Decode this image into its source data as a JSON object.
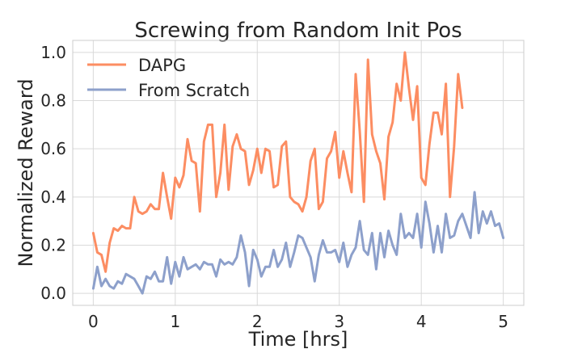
{
  "chart_data": {
    "type": "line",
    "title": "Screwing from Random Init Pos",
    "xlabel": "Time [hrs]",
    "ylabel": "Normalized Reward",
    "xlim": [
      -0.25,
      5.25
    ],
    "ylim": [
      -0.05,
      1.05
    ],
    "xticks": [
      0,
      1,
      2,
      3,
      4,
      5
    ],
    "yticks": [
      0.0,
      0.2,
      0.4,
      0.6,
      0.8,
      1.0
    ],
    "xtick_labels": [
      "0",
      "1",
      "2",
      "3",
      "4",
      "5"
    ],
    "ytick_labels": [
      "0.0",
      "0.2",
      "0.4",
      "0.6",
      "0.8",
      "1.0"
    ],
    "grid": true,
    "legend_position": "top-left",
    "series": [
      {
        "name": "DAPG",
        "color": "#fc8d62",
        "points": [
          [
            0.0,
            0.25
          ],
          [
            0.05,
            0.17
          ],
          [
            0.1,
            0.16
          ],
          [
            0.15,
            0.09
          ],
          [
            0.2,
            0.21
          ],
          [
            0.25,
            0.27
          ],
          [
            0.3,
            0.26
          ],
          [
            0.35,
            0.28
          ],
          [
            0.4,
            0.27
          ],
          [
            0.45,
            0.27
          ],
          [
            0.5,
            0.4
          ],
          [
            0.55,
            0.34
          ],
          [
            0.6,
            0.33
          ],
          [
            0.65,
            0.34
          ],
          [
            0.7,
            0.37
          ],
          [
            0.75,
            0.35
          ],
          [
            0.8,
            0.35
          ],
          [
            0.85,
            0.5
          ],
          [
            0.9,
            0.4
          ],
          [
            0.95,
            0.31
          ],
          [
            1.0,
            0.48
          ],
          [
            1.05,
            0.44
          ],
          [
            1.1,
            0.49
          ],
          [
            1.15,
            0.64
          ],
          [
            1.2,
            0.55
          ],
          [
            1.25,
            0.54
          ],
          [
            1.3,
            0.34
          ],
          [
            1.35,
            0.63
          ],
          [
            1.4,
            0.7
          ],
          [
            1.45,
            0.7
          ],
          [
            1.5,
            0.4
          ],
          [
            1.55,
            0.5
          ],
          [
            1.6,
            0.7
          ],
          [
            1.65,
            0.43
          ],
          [
            1.7,
            0.61
          ],
          [
            1.75,
            0.66
          ],
          [
            1.8,
            0.6
          ],
          [
            1.85,
            0.59
          ],
          [
            1.9,
            0.45
          ],
          [
            1.95,
            0.51
          ],
          [
            2.0,
            0.6
          ],
          [
            2.05,
            0.5
          ],
          [
            2.1,
            0.6
          ],
          [
            2.15,
            0.59
          ],
          [
            2.2,
            0.44
          ],
          [
            2.25,
            0.45
          ],
          [
            2.3,
            0.61
          ],
          [
            2.35,
            0.63
          ],
          [
            2.4,
            0.4
          ],
          [
            2.45,
            0.38
          ],
          [
            2.5,
            0.37
          ],
          [
            2.55,
            0.34
          ],
          [
            2.6,
            0.4
          ],
          [
            2.65,
            0.55
          ],
          [
            2.7,
            0.6
          ],
          [
            2.75,
            0.35
          ],
          [
            2.8,
            0.38
          ],
          [
            2.85,
            0.56
          ],
          [
            2.9,
            0.59
          ],
          [
            2.95,
            0.67
          ],
          [
            3.0,
            0.48
          ],
          [
            3.05,
            0.59
          ],
          [
            3.1,
            0.5
          ],
          [
            3.15,
            0.42
          ],
          [
            3.2,
            0.91
          ],
          [
            3.25,
            0.67
          ],
          [
            3.3,
            0.38
          ],
          [
            3.35,
            0.97
          ],
          [
            3.4,
            0.66
          ],
          [
            3.45,
            0.59
          ],
          [
            3.5,
            0.54
          ],
          [
            3.55,
            0.39
          ],
          [
            3.6,
            0.65
          ],
          [
            3.65,
            0.71
          ],
          [
            3.7,
            0.87
          ],
          [
            3.75,
            0.8
          ],
          [
            3.8,
            1.0
          ],
          [
            3.85,
            0.85
          ],
          [
            3.9,
            0.72
          ],
          [
            3.95,
            0.86
          ],
          [
            4.0,
            0.48
          ],
          [
            4.05,
            0.45
          ],
          [
            4.1,
            0.62
          ],
          [
            4.15,
            0.75
          ],
          [
            4.2,
            0.75
          ],
          [
            4.25,
            0.66
          ],
          [
            4.3,
            0.87
          ],
          [
            4.35,
            0.4
          ],
          [
            4.4,
            0.61
          ],
          [
            4.45,
            0.91
          ],
          [
            4.5,
            0.77
          ]
        ]
      },
      {
        "name": "From Scratch",
        "color": "#8da0cb",
        "points": [
          [
            0.0,
            0.02
          ],
          [
            0.05,
            0.11
          ],
          [
            0.1,
            0.03
          ],
          [
            0.15,
            0.06
          ],
          [
            0.2,
            0.03
          ],
          [
            0.25,
            0.02
          ],
          [
            0.3,
            0.05
          ],
          [
            0.35,
            0.04
          ],
          [
            0.4,
            0.08
          ],
          [
            0.45,
            0.07
          ],
          [
            0.5,
            0.06
          ],
          [
            0.55,
            0.03
          ],
          [
            0.6,
            0.0
          ],
          [
            0.65,
            0.07
          ],
          [
            0.7,
            0.06
          ],
          [
            0.75,
            0.09
          ],
          [
            0.8,
            0.05
          ],
          [
            0.85,
            0.05
          ],
          [
            0.9,
            0.15
          ],
          [
            0.95,
            0.04
          ],
          [
            1.0,
            0.13
          ],
          [
            1.05,
            0.07
          ],
          [
            1.1,
            0.15
          ],
          [
            1.15,
            0.1
          ],
          [
            1.2,
            0.11
          ],
          [
            1.25,
            0.12
          ],
          [
            1.3,
            0.1
          ],
          [
            1.35,
            0.13
          ],
          [
            1.4,
            0.12
          ],
          [
            1.45,
            0.12
          ],
          [
            1.5,
            0.07
          ],
          [
            1.55,
            0.14
          ],
          [
            1.6,
            0.12
          ],
          [
            1.65,
            0.13
          ],
          [
            1.7,
            0.12
          ],
          [
            1.75,
            0.15
          ],
          [
            1.8,
            0.24
          ],
          [
            1.85,
            0.17
          ],
          [
            1.9,
            0.03
          ],
          [
            1.95,
            0.18
          ],
          [
            2.0,
            0.14
          ],
          [
            2.05,
            0.07
          ],
          [
            2.1,
            0.11
          ],
          [
            2.15,
            0.11
          ],
          [
            2.2,
            0.18
          ],
          [
            2.25,
            0.11
          ],
          [
            2.3,
            0.14
          ],
          [
            2.35,
            0.21
          ],
          [
            2.4,
            0.11
          ],
          [
            2.45,
            0.17
          ],
          [
            2.5,
            0.24
          ],
          [
            2.55,
            0.23
          ],
          [
            2.6,
            0.19
          ],
          [
            2.65,
            0.15
          ],
          [
            2.7,
            0.05
          ],
          [
            2.75,
            0.16
          ],
          [
            2.8,
            0.22
          ],
          [
            2.85,
            0.17
          ],
          [
            2.9,
            0.17
          ],
          [
            2.95,
            0.18
          ],
          [
            3.0,
            0.13
          ],
          [
            3.05,
            0.21
          ],
          [
            3.1,
            0.11
          ],
          [
            3.15,
            0.16
          ],
          [
            3.2,
            0.19
          ],
          [
            3.25,
            0.3
          ],
          [
            3.3,
            0.18
          ],
          [
            3.35,
            0.16
          ],
          [
            3.4,
            0.25
          ],
          [
            3.45,
            0.1
          ],
          [
            3.5,
            0.25
          ],
          [
            3.55,
            0.15
          ],
          [
            3.6,
            0.26
          ],
          [
            3.65,
            0.2
          ],
          [
            3.7,
            0.16
          ],
          [
            3.75,
            0.33
          ],
          [
            3.8,
            0.23
          ],
          [
            3.85,
            0.25
          ],
          [
            3.9,
            0.23
          ],
          [
            3.95,
            0.33
          ],
          [
            4.0,
            0.19
          ],
          [
            4.05,
            0.38
          ],
          [
            4.1,
            0.29
          ],
          [
            4.15,
            0.17
          ],
          [
            4.2,
            0.28
          ],
          [
            4.25,
            0.17
          ],
          [
            4.3,
            0.33
          ],
          [
            4.35,
            0.23
          ],
          [
            4.4,
            0.24
          ],
          [
            4.45,
            0.3
          ],
          [
            4.5,
            0.33
          ],
          [
            4.55,
            0.28
          ],
          [
            4.6,
            0.23
          ],
          [
            4.65,
            0.42
          ],
          [
            4.7,
            0.25
          ],
          [
            4.75,
            0.34
          ],
          [
            4.8,
            0.29
          ],
          [
            4.85,
            0.34
          ],
          [
            4.9,
            0.28
          ],
          [
            4.95,
            0.29
          ],
          [
            5.0,
            0.23
          ]
        ]
      }
    ]
  }
}
